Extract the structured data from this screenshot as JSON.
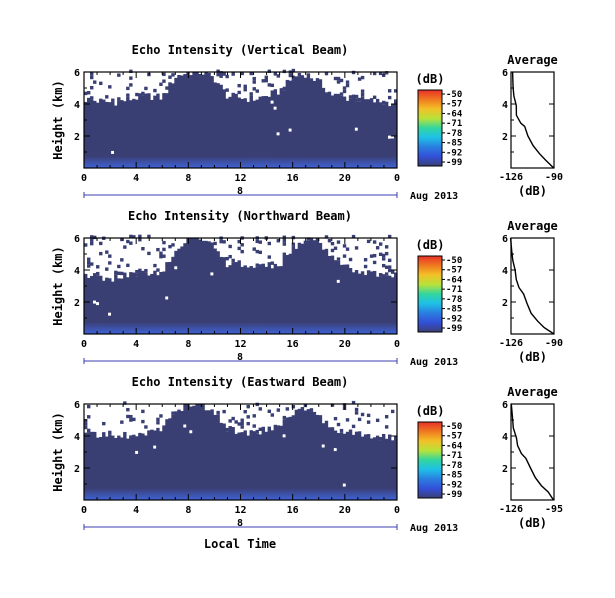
{
  "figure": {
    "xlabel": "Local Time",
    "date_label": "Aug 2013",
    "colors": {
      "background_echo": "#3a3f73",
      "no_data": "#ffffff",
      "near_ground_echo": "#3f63d6",
      "axis": "#000000"
    },
    "colorbar": {
      "unit_label": "(dB)",
      "tick_labels": [
        "-50",
        "-57",
        "-64",
        "-71",
        "-78",
        "-85",
        "-92",
        "-99"
      ],
      "colors_top_to_bottom": [
        "#e8302a",
        "#f07a20",
        "#f2c227",
        "#b8e23a",
        "#32d6a0",
        "#1ec0e8",
        "#2a7ee0",
        "#3350d8",
        "#3a3f73"
      ]
    }
  },
  "chart_data": [
    {
      "type": "heatmap",
      "title": "Echo Intensity (Vertical Beam)",
      "xlabel": "Local Time",
      "ylabel": "Height (km)",
      "x_tick_labels": [
        "0",
        "4",
        "8",
        "12",
        "16",
        "20",
        "0"
      ],
      "x_secondary_label": "8",
      "xlim": [
        0,
        24
      ],
      "ylim": [
        0,
        6
      ],
      "y_tick_labels": [
        "2",
        "4",
        "6"
      ],
      "y_ticks": [
        2,
        4,
        6
      ],
      "value_range_db": [
        -99,
        -50
      ],
      "echo_top_km_by_hour": [
        4.3,
        4.2,
        4.1,
        4.2,
        4.4,
        4.5,
        4.4,
        5.7,
        6.0,
        6.0,
        5.6,
        4.5,
        4.4,
        4.3,
        4.5,
        4.8,
        5.6,
        5.9,
        5.4,
        4.6,
        4.4,
        4.3,
        4.2,
        4.1
      ],
      "note_values": "Background echo about -99 dB; strongest echo about -90 dB near the surface"
    },
    {
      "type": "line",
      "title": "Average",
      "xlabel": "(dB)",
      "ylabel": "",
      "x_tick_labels": [
        "-126",
        "-90"
      ],
      "xlim": [
        -126,
        -90
      ],
      "ylim": [
        0,
        6
      ],
      "y_tick_labels": [
        "2",
        "4",
        "6"
      ],
      "y_ticks": [
        2,
        4,
        6
      ],
      "series": [
        {
          "x": [
            -90,
            -97,
            -102,
            -108,
            -112,
            -115,
            -118,
            -121,
            -122,
            -123,
            -124,
            -125
          ],
          "y": [
            0.0,
            0.5,
            0.9,
            1.4,
            2.0,
            2.6,
            2.8,
            3.3,
            3.9,
            4.5,
            5.0,
            6.0
          ]
        }
      ]
    },
    {
      "type": "heatmap",
      "title": "Echo Intensity (Northward Beam)",
      "xlabel": "Local Time",
      "ylabel": "Height (km)",
      "x_tick_labels": [
        "0",
        "4",
        "8",
        "12",
        "16",
        "20",
        "0"
      ],
      "x_secondary_label": "8",
      "xlim": [
        0,
        24
      ],
      "ylim": [
        0,
        6
      ],
      "y_tick_labels": [
        "2",
        "4",
        "6"
      ],
      "y_ticks": [
        2,
        4,
        6
      ],
      "value_range_db": [
        -99,
        -50
      ],
      "echo_top_km_by_hour": [
        3.5,
        3.6,
        3.4,
        3.7,
        3.8,
        3.7,
        4.0,
        5.3,
        5.9,
        6.0,
        5.6,
        4.3,
        4.4,
        4.1,
        4.2,
        4.4,
        5.2,
        6.0,
        5.8,
        4.7,
        4.3,
        4.0,
        3.8,
        3.6
      ],
      "note_values": "Background echo about -99 dB; strongest echo about -90 dB near the surface"
    },
    {
      "type": "line",
      "title": "Average",
      "xlabel": "(dB)",
      "ylabel": "",
      "x_tick_labels": [
        "-126",
        "-90"
      ],
      "xlim": [
        -126,
        -90
      ],
      "ylim": [
        0,
        6
      ],
      "y_tick_labels": [
        "2",
        "4",
        "6"
      ],
      "y_ticks": [
        2,
        4,
        6
      ],
      "series": [
        {
          "x": [
            -90,
            -98,
            -104,
            -109,
            -113,
            -116,
            -119,
            -121,
            -123,
            -124,
            -125,
            -126
          ],
          "y": [
            0.0,
            0.4,
            0.8,
            1.3,
            1.9,
            2.5,
            2.9,
            3.4,
            4.0,
            4.6,
            5.2,
            6.0
          ]
        }
      ]
    },
    {
      "type": "heatmap",
      "title": "Echo Intensity (Eastward Beam)",
      "xlabel": "Local Time",
      "ylabel": "Height (km)",
      "x_tick_labels": [
        "0",
        "4",
        "8",
        "12",
        "16",
        "20",
        "0"
      ],
      "x_secondary_label": "8",
      "xlim": [
        0,
        24
      ],
      "ylim": [
        0,
        6
      ],
      "y_tick_labels": [
        "2",
        "4",
        "6"
      ],
      "y_ticks": [
        2,
        4,
        6
      ],
      "value_range_db": [
        -99,
        -50
      ],
      "echo_top_km_by_hour": [
        4.0,
        4.1,
        3.9,
        4.0,
        4.2,
        4.3,
        4.5,
        5.5,
        5.9,
        6.0,
        5.5,
        4.4,
        4.3,
        4.2,
        4.4,
        4.7,
        5.4,
        5.8,
        5.2,
        4.5,
        4.3,
        4.1,
        4.0,
        3.9
      ],
      "note_values": "Background echo about -99 dB; strongest echo about -90 dB near the surface"
    },
    {
      "type": "line",
      "title": "Average",
      "xlabel": "(dB)",
      "ylabel": "",
      "x_tick_labels": [
        "-126",
        "-95"
      ],
      "xlim": [
        -126,
        -95
      ],
      "ylim": [
        0,
        6
      ],
      "y_tick_labels": [
        "2",
        "4",
        "6"
      ],
      "y_ticks": [
        2,
        4,
        6
      ],
      "series": [
        {
          "x": [
            -95,
            -99,
            -104,
            -108,
            -112,
            -115,
            -118,
            -121,
            -122,
            -124,
            -125,
            -126
          ],
          "y": [
            0.0,
            0.5,
            0.9,
            1.4,
            2.0,
            2.6,
            2.9,
            3.4,
            3.9,
            4.5,
            5.0,
            6.0
          ]
        }
      ]
    }
  ]
}
